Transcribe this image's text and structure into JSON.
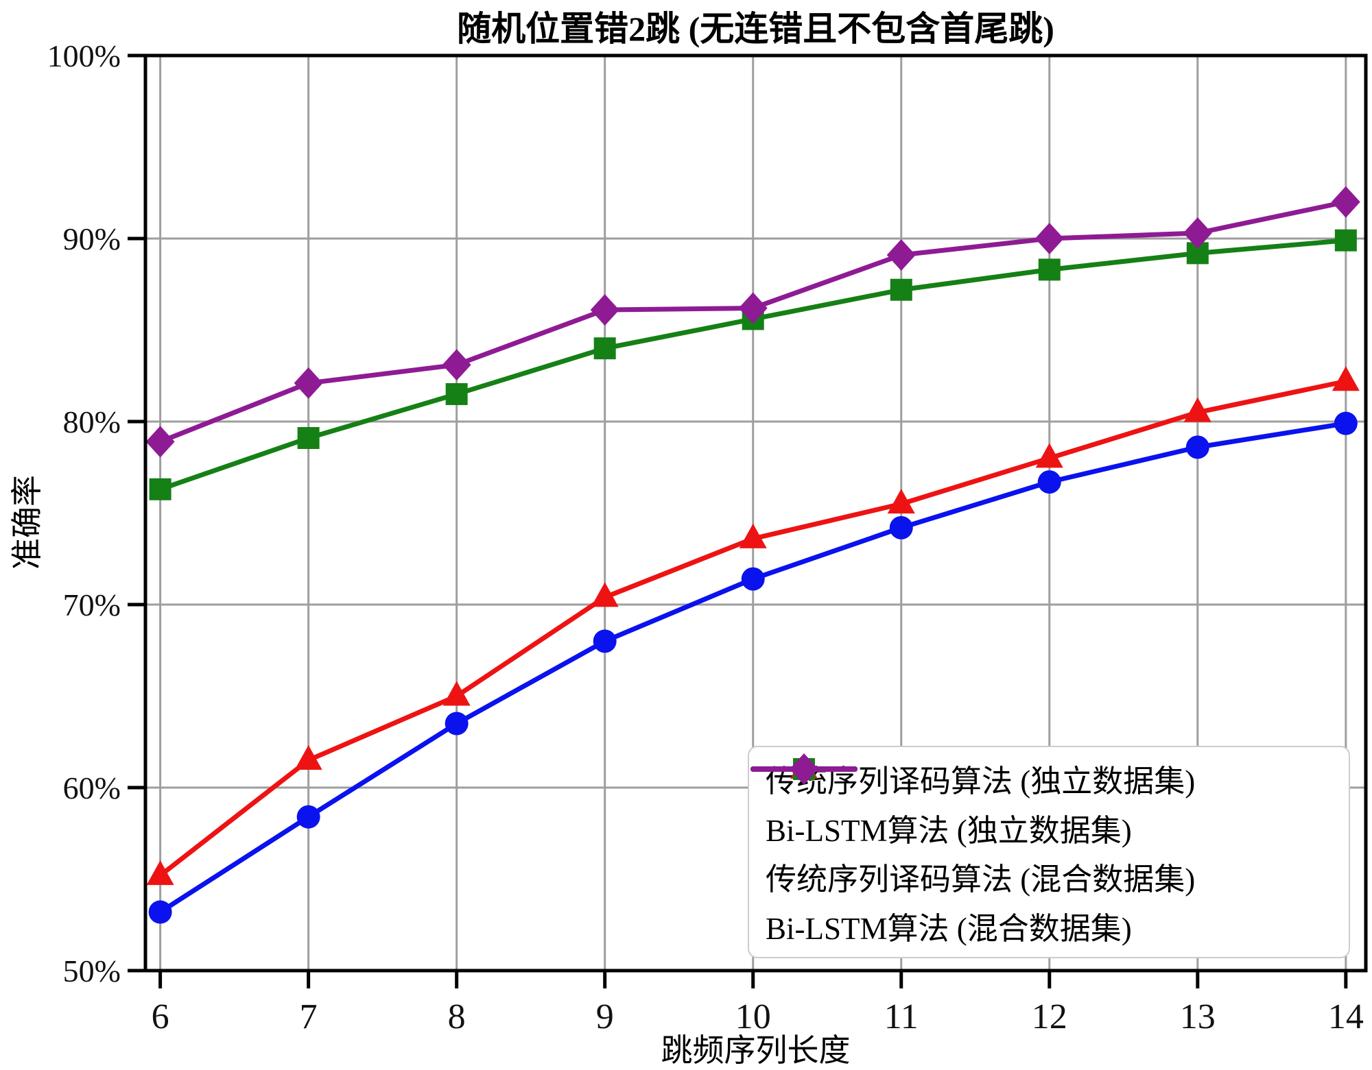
{
  "chart_data": {
    "type": "line",
    "title": "随机位置错2跳 (无连错且不包含首尾跳)",
    "xlabel": "跳频序列长度",
    "ylabel": "准确率",
    "x": [
      6,
      7,
      8,
      9,
      10,
      11,
      12,
      13,
      14
    ],
    "xtick_labels": [
      "6",
      "7",
      "8",
      "9",
      "10",
      "11",
      "12",
      "13",
      "14"
    ],
    "yticks": [
      50,
      60,
      70,
      80,
      90,
      100
    ],
    "ytick_labels": [
      "50%",
      "60%",
      "70%",
      "80%",
      "90%",
      "100%"
    ],
    "xlim": [
      5.9,
      14.135
    ],
    "ylim": [
      50,
      100
    ],
    "grid": true,
    "legend_position": "lower right",
    "axis_color": "#000000",
    "grid_color": "#9e9e9e",
    "series": [
      {
        "name": "传统序列译码算法 (独立数据集)",
        "marker": "circle",
        "color": "#0a12ee",
        "values": [
          53.2,
          58.4,
          63.5,
          68.0,
          71.4,
          74.2,
          76.7,
          78.6,
          79.9
        ]
      },
      {
        "name": "Bi-LSTM算法 (独立数据集)",
        "marker": "triangle",
        "color": "#ee1313",
        "values": [
          55.2,
          61.5,
          65.0,
          70.4,
          73.6,
          75.5,
          78.0,
          80.5,
          82.2
        ]
      },
      {
        "name": "传统序列译码算法 (混合数据集)",
        "marker": "square",
        "color": "#158015",
        "values": [
          76.3,
          79.1,
          81.5,
          84.0,
          85.6,
          87.2,
          88.3,
          89.2,
          89.9
        ]
      },
      {
        "name": "Bi-LSTM算法 (混合数据集)",
        "marker": "diamond",
        "color": "#8e1b94",
        "values": [
          78.9,
          82.1,
          83.1,
          86.1,
          86.2,
          89.1,
          90.0,
          90.3,
          92.0
        ]
      }
    ]
  }
}
